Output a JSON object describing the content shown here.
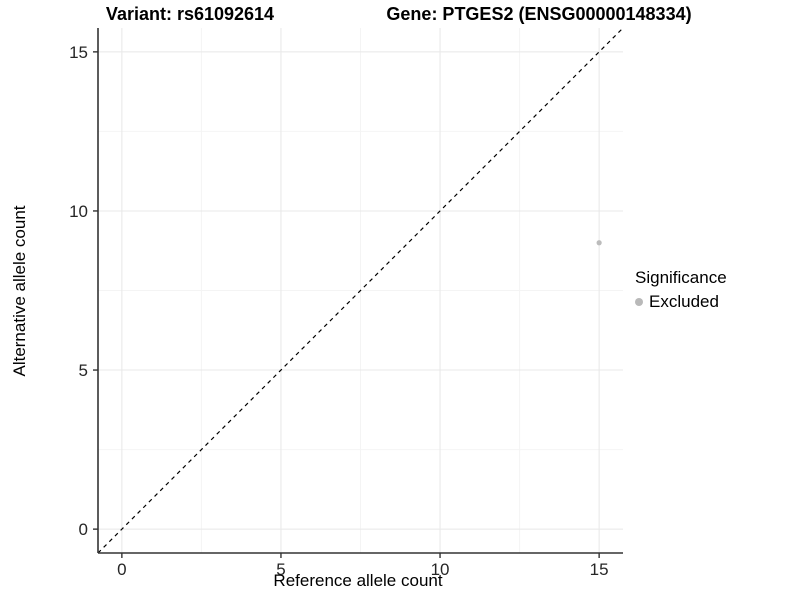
{
  "title": {
    "variant": "Variant: rs61092614",
    "gene": "Gene: PTGES2 (ENSG00000148334)"
  },
  "axes": {
    "x_label": "Reference allele count",
    "y_label": "Alternative allele count"
  },
  "legend": {
    "title": "Significance",
    "items": [
      {
        "label": "Excluded",
        "color": "#b9b9b9"
      }
    ]
  },
  "colors": {
    "background": "#ffffff",
    "grid_major": "#e8e8e8",
    "grid_minor": "#f4f4f4",
    "axis_line": "#333333",
    "tick_mark": "#333333",
    "tick_text": "#262626",
    "identity_line": "#000000",
    "point_excluded": "#bcbcbc"
  },
  "chart_data": {
    "type": "scatter",
    "title": "Variant: rs61092614    Gene: PTGES2 (ENSG00000148334)",
    "xlabel": "Reference allele count",
    "ylabel": "Alternative allele count",
    "xlim": [
      -0.75,
      15.75
    ],
    "ylim": [
      -0.75,
      15.75
    ],
    "x_ticks": [
      0,
      5,
      10,
      15
    ],
    "y_ticks": [
      0,
      5,
      10,
      15
    ],
    "x_minor_ticks": [
      2.5,
      7.5,
      12.5
    ],
    "y_minor_ticks": [
      2.5,
      7.5,
      12.5
    ],
    "grid": true,
    "legend_position": "right",
    "series": [
      {
        "name": "Excluded",
        "color": "#bcbcbc",
        "point_radius": 2.6,
        "points": [
          {
            "x": 15,
            "y": 9
          }
        ]
      }
    ],
    "reference_line": {
      "type": "identity y=x",
      "style": "dashed",
      "color": "#000000",
      "from": [
        -0.75,
        -0.75
      ],
      "to": [
        15.75,
        15.75
      ]
    }
  }
}
